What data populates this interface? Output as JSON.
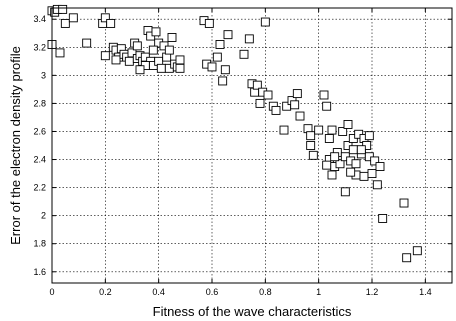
{
  "chart_data": {
    "type": "scatter",
    "title": "",
    "xlabel": "Fitness of the wave characteristics",
    "ylabel": "Error of the electron density profile",
    "xlim": [
      0,
      1.5
    ],
    "ylim": [
      1.52,
      3.48
    ],
    "xticks": [
      "0",
      "0.2",
      "0.4",
      "0.6",
      "0.8",
      "1",
      "1.2",
      "1.4"
    ],
    "yticks": [
      "1.6",
      "1.8",
      "2",
      "2.2",
      "2.4",
      "2.6",
      "2.8",
      "3",
      "3.2",
      "3.4"
    ],
    "grid": true,
    "marker": "open-square",
    "marker_color": "#000000",
    "points": [
      [
        0.0,
        3.46
      ],
      [
        0.01,
        3.45
      ],
      [
        0.02,
        3.47
      ],
      [
        0.04,
        3.47
      ],
      [
        0.0,
        3.22
      ],
      [
        0.03,
        3.16
      ],
      [
        0.05,
        3.37
      ],
      [
        0.08,
        3.41
      ],
      [
        0.13,
        3.23
      ],
      [
        0.19,
        3.37
      ],
      [
        0.2,
        3.41
      ],
      [
        0.22,
        3.37
      ],
      [
        0.2,
        3.14
      ],
      [
        0.23,
        3.2
      ],
      [
        0.24,
        3.18
      ],
      [
        0.25,
        3.13
      ],
      [
        0.26,
        3.19
      ],
      [
        0.24,
        3.11
      ],
      [
        0.27,
        3.15
      ],
      [
        0.28,
        3.13
      ],
      [
        0.3,
        3.16
      ],
      [
        0.29,
        3.1
      ],
      [
        0.31,
        3.23
      ],
      [
        0.32,
        3.21
      ],
      [
        0.32,
        3.12
      ],
      [
        0.33,
        3.14
      ],
      [
        0.34,
        3.1
      ],
      [
        0.35,
        3.13
      ],
      [
        0.36,
        3.32
      ],
      [
        0.37,
        3.28
      ],
      [
        0.37,
        3.1
      ],
      [
        0.38,
        3.07
      ],
      [
        0.39,
        3.31
      ],
      [
        0.4,
        3.23
      ],
      [
        0.4,
        3.1
      ],
      [
        0.41,
        3.05
      ],
      [
        0.42,
        3.21
      ],
      [
        0.43,
        3.13
      ],
      [
        0.44,
        3.05
      ],
      [
        0.45,
        3.27
      ],
      [
        0.46,
        3.08
      ],
      [
        0.47,
        3.06
      ],
      [
        0.48,
        3.11
      ],
      [
        0.48,
        3.05
      ],
      [
        0.35,
        3.07
      ],
      [
        0.38,
        3.18
      ],
      [
        0.33,
        3.04
      ],
      [
        0.44,
        3.18
      ],
      [
        0.57,
        3.39
      ],
      [
        0.59,
        3.37
      ],
      [
        0.58,
        3.08
      ],
      [
        0.6,
        3.06
      ],
      [
        0.62,
        3.13
      ],
      [
        0.63,
        3.22
      ],
      [
        0.64,
        2.96
      ],
      [
        0.65,
        3.04
      ],
      [
        0.66,
        3.29
      ],
      [
        0.72,
        3.15
      ],
      [
        0.74,
        3.26
      ],
      [
        0.8,
        3.38
      ],
      [
        0.75,
        2.94
      ],
      [
        0.76,
        2.88
      ],
      [
        0.77,
        2.93
      ],
      [
        0.78,
        2.8
      ],
      [
        0.79,
        2.88
      ],
      [
        0.81,
        2.86
      ],
      [
        0.83,
        2.78
      ],
      [
        0.84,
        2.75
      ],
      [
        0.87,
        2.61
      ],
      [
        0.88,
        2.78
      ],
      [
        0.9,
        2.82
      ],
      [
        0.91,
        2.79
      ],
      [
        0.92,
        2.87
      ],
      [
        0.93,
        2.71
      ],
      [
        0.96,
        2.62
      ],
      [
        0.97,
        2.5
      ],
      [
        0.97,
        2.57
      ],
      [
        0.98,
        2.43
      ],
      [
        1.0,
        2.61
      ],
      [
        1.02,
        2.86
      ],
      [
        1.03,
        2.78
      ],
      [
        1.04,
        2.55
      ],
      [
        1.05,
        2.61
      ],
      [
        1.04,
        2.4
      ],
      [
        1.05,
        2.29
      ],
      [
        1.06,
        2.35
      ],
      [
        1.07,
        2.45
      ],
      [
        1.08,
        2.37
      ],
      [
        1.09,
        2.6
      ],
      [
        1.1,
        2.42
      ],
      [
        1.1,
        2.17
      ],
      [
        1.11,
        2.5
      ],
      [
        1.12,
        2.39
      ],
      [
        1.13,
        2.55
      ],
      [
        1.13,
        2.47
      ],
      [
        1.14,
        2.37
      ],
      [
        1.14,
        2.29
      ],
      [
        1.15,
        2.58
      ],
      [
        1.16,
        2.44
      ],
      [
        1.17,
        2.55
      ],
      [
        1.17,
        2.28
      ],
      [
        1.18,
        2.5
      ],
      [
        1.19,
        2.42
      ],
      [
        1.2,
        2.3
      ],
      [
        1.21,
        2.39
      ],
      [
        1.22,
        2.22
      ],
      [
        1.23,
        2.35
      ],
      [
        1.24,
        1.98
      ],
      [
        1.32,
        2.09
      ],
      [
        1.33,
        1.7
      ],
      [
        1.37,
        1.75
      ],
      [
        1.11,
        2.65
      ],
      [
        1.16,
        2.47
      ],
      [
        1.19,
        2.57
      ],
      [
        1.06,
        2.42
      ],
      [
        1.12,
        2.31
      ],
      [
        1.03,
        2.36
      ]
    ]
  }
}
